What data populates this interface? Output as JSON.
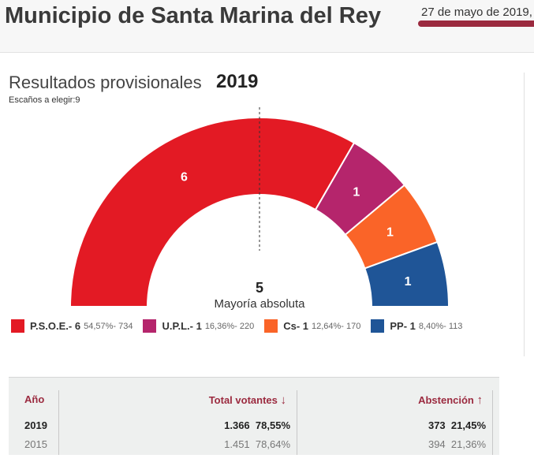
{
  "header": {
    "title": "Municipio de Santa Marina del Rey",
    "date": "27 de mayo de 2019,"
  },
  "results": {
    "title": "Resultados provisionales",
    "year": "2019",
    "seats_label": "Escaños a elegir:",
    "seats_total": "9"
  },
  "chart_data": {
    "type": "pie",
    "subtype": "half-donut",
    "title": "Resultados provisionales 2019",
    "total_seats": 9,
    "majority": {
      "value": "5",
      "label": "Mayoría absoluta"
    },
    "series": [
      {
        "name": "P.S.O.E.",
        "seats": 6,
        "pct": "54,57%",
        "votes": 734,
        "color": "#e31a24"
      },
      {
        "name": "U.P.L.",
        "seats": 1,
        "pct": "16,36%",
        "votes": 220,
        "color": "#b5256c"
      },
      {
        "name": "Cs",
        "seats": 1,
        "pct": "12,64%",
        "votes": 170,
        "color": "#fa6428"
      },
      {
        "name": "PP",
        "seats": 1,
        "pct": "8,40%",
        "votes": 113,
        "color": "#1f5597"
      }
    ]
  },
  "legend": [
    {
      "label": "P.S.O.E.- 6",
      "stats": "54,57%- 734",
      "color": "#e31a24"
    },
    {
      "label": "U.P.L.- 1",
      "stats": "16,36%- 220",
      "color": "#b5256c"
    },
    {
      "label": "Cs- 1",
      "stats": "12,64%- 170",
      "color": "#fa6428"
    },
    {
      "label": "PP- 1",
      "stats": "8,40%- 113",
      "color": "#1f5597"
    }
  ],
  "table": {
    "headers": {
      "year": "Año",
      "votes": "Total votantes",
      "votes_icon": "↓",
      "abst": "Abstención",
      "abst_icon": "↑"
    },
    "rows": [
      {
        "year": "2019",
        "votes": "1.366",
        "votes_pct": "78,55%",
        "abst": "373",
        "abst_pct": "21,45%"
      },
      {
        "year": "2015",
        "votes": "1.451",
        "votes_pct": "78,64%",
        "abst": "394",
        "abst_pct": "21,36%"
      }
    ]
  }
}
